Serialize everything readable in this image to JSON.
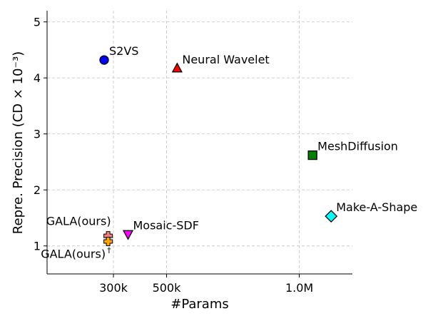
{
  "chart_data": {
    "type": "scatter",
    "xlabel": "#Params",
    "ylabel": "Repre. Precision (CD × 10⁻³)",
    "xlim": [
      50000,
      1200000
    ],
    "ylim": [
      0.5,
      5.2
    ],
    "xticks": [
      {
        "value": 300000,
        "label": "300k"
      },
      {
        "value": 500000,
        "label": "500k"
      },
      {
        "value": 1000000,
        "label": "1.0M"
      }
    ],
    "yticks": [
      {
        "value": 1,
        "label": "1"
      },
      {
        "value": 2,
        "label": "2"
      },
      {
        "value": 3,
        "label": "3"
      },
      {
        "value": 4,
        "label": "4"
      },
      {
        "value": 5,
        "label": "5"
      }
    ],
    "grid": true,
    "points": [
      {
        "name": "S2VS",
        "x": 265000,
        "y": 4.32,
        "marker": "circle",
        "color": "#0000ff",
        "label_pos": "upper-right"
      },
      {
        "name": "Neural Wavelet",
        "x": 540000,
        "y": 4.17,
        "marker": "triangle-up",
        "color": "#ff0000",
        "label_pos": "upper-right"
      },
      {
        "name": "MeshDiffusion",
        "x": 1050000,
        "y": 2.62,
        "marker": "square",
        "color": "#008000",
        "label_pos": "upper-right"
      },
      {
        "name": "Make-A-Shape",
        "x": 1120000,
        "y": 1.53,
        "marker": "diamond",
        "color": "#00ffff",
        "label_pos": "upper-right"
      },
      {
        "name": "Mosaic-SDF",
        "x": 355000,
        "y": 1.21,
        "marker": "triangle-down",
        "color": "#ff00ff",
        "label_pos": "upper-right"
      },
      {
        "name": "GALA(ours)",
        "x": 280000,
        "y": 1.18,
        "marker": "plus",
        "color": "#f08080",
        "label_pos": "upper-left"
      },
      {
        "name": "GALA(ours)",
        "sup": "†",
        "x": 280000,
        "y": 1.08,
        "marker": "plus",
        "color": "#ffa500",
        "label_pos": "lower-left"
      }
    ]
  }
}
